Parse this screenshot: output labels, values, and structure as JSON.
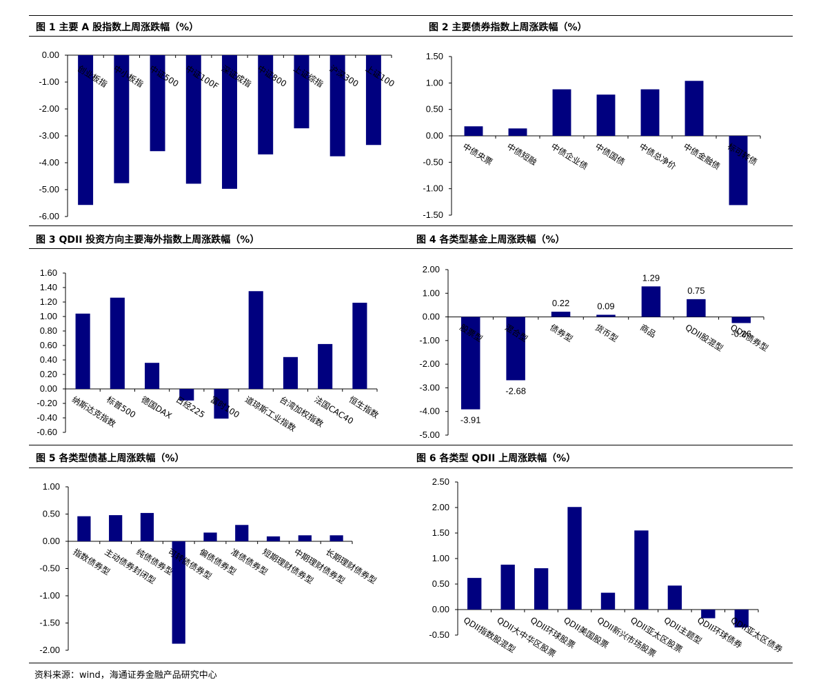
{
  "figures": [
    {
      "title": "图 1   主要 A 股指数上周涨跌幅（%）",
      "chart_data": {
        "type": "bar",
        "categories": [
          "创业板指",
          "中小板指",
          "中证500",
          "中证100F",
          "深证成指",
          "中证800",
          "上证综指",
          "沪深300",
          "上证100"
        ],
        "values": [
          -5.57,
          -4.76,
          -3.57,
          -4.78,
          -4.97,
          -3.69,
          -2.72,
          -3.76,
          -3.34
        ],
        "yticks": [
          "0.00",
          "-1.00",
          "-2.00",
          "-3.00",
          "-4.00",
          "-5.00",
          "-6.00"
        ],
        "ylim": [
          -6,
          0
        ],
        "bar_color": "#00007f"
      }
    },
    {
      "title": "图 2  主要债券指数上周涨跌幅（%）",
      "chart_data": {
        "type": "bar",
        "categories": [
          "中债央票",
          "中债短融",
          "中债企业债",
          "中债国债",
          "中债总净价",
          "中债金融债",
          "标可转债"
        ],
        "values": [
          0.18,
          0.14,
          0.88,
          0.78,
          0.88,
          1.04,
          -1.31
        ],
        "yticks": [
          "1.50",
          "1.00",
          "0.50",
          "0.00",
          "-0.50",
          "-1.00",
          "-1.50"
        ],
        "ylim": [
          -1.5,
          1.5
        ],
        "bar_color": "#00007f"
      }
    },
    {
      "title": "图 3 QDII 投资方向主要海外指数上周涨跌幅（%）",
      "chart_data": {
        "type": "bar",
        "categories": [
          "纳斯达克指数",
          "标普500",
          "德国DAX",
          "日经225",
          "富时100",
          "道琼斯工业指数",
          "台湾加权指数",
          "法国CAC40",
          "恒生指数"
        ],
        "values": [
          1.04,
          1.26,
          0.36,
          -0.16,
          -0.41,
          1.35,
          0.44,
          0.62,
          1.19
        ],
        "yticks": [
          "1.60",
          "1.40",
          "1.20",
          "1.00",
          "0.80",
          "0.60",
          "0.40",
          "0.20",
          "0.00",
          "-0.20",
          "-0.40",
          "-0.60"
        ],
        "ylim": [
          -0.6,
          1.6
        ],
        "bar_color": "#00007f"
      }
    },
    {
      "title": "图 4  各类型基金上周涨跌幅（%）",
      "chart_data": {
        "type": "bar",
        "categories": [
          "股票型",
          "混合型",
          "债券型",
          "货币型",
          "商品",
          "QDII股混型",
          "QDII债券型"
        ],
        "values": [
          -3.91,
          -2.68,
          0.22,
          0.09,
          1.29,
          0.75,
          -0.26
        ],
        "data_labels": [
          "-3.91",
          "-2.68",
          "0.22",
          "0.09",
          "1.29",
          "0.75",
          "-0.26"
        ],
        "yticks": [
          "2.00",
          "1.00",
          "0.00",
          "-1.00",
          "-2.00",
          "-3.00",
          "-4.00",
          "-5.00"
        ],
        "ylim": [
          -5,
          2
        ],
        "bar_color": "#00007f"
      }
    },
    {
      "title": "图 5  各类型债基上周涨跌幅（%）",
      "chart_data": {
        "type": "bar",
        "categories": [
          "指数债券型",
          "主动债券封闭型",
          "纯债债券型",
          "可转债债券型",
          "偏债债券型",
          "准债债券型",
          "短期理财债券型",
          "中期理财债券型",
          "长期理财债券型"
        ],
        "values": [
          0.46,
          0.48,
          0.52,
          -1.88,
          0.16,
          0.3,
          0.09,
          0.11,
          0.11
        ],
        "yticks": [
          "1.00",
          "0.50",
          "0.00",
          "-0.50",
          "-1.00",
          "-1.50",
          "-2.00"
        ],
        "ylim": [
          -2,
          1
        ],
        "bar_color": "#00007f"
      }
    },
    {
      "title": "图 6  各类型 QDII 上周涨跌幅（%）",
      "chart_data": {
        "type": "bar",
        "categories": [
          "QDII指数股混型",
          "QDII大中华区股票",
          "QDII环球股票",
          "QDII美国股票",
          "QDII新兴市场股票",
          "QDII亚太区股票",
          "QDII主题型",
          "QDII环球债券",
          "QDII亚太区债券"
        ],
        "values": [
          0.62,
          0.88,
          0.81,
          2.01,
          0.33,
          1.55,
          0.47,
          -0.17,
          -0.35
        ],
        "yticks": [
          "2.50",
          "2.00",
          "1.50",
          "1.00",
          "0.50",
          "0.00",
          "-0.50"
        ],
        "ylim": [
          -0.5,
          2.5
        ],
        "bar_color": "#00007f"
      }
    }
  ],
  "source": "资料来源：wind，海通证券金融产品研究中心"
}
